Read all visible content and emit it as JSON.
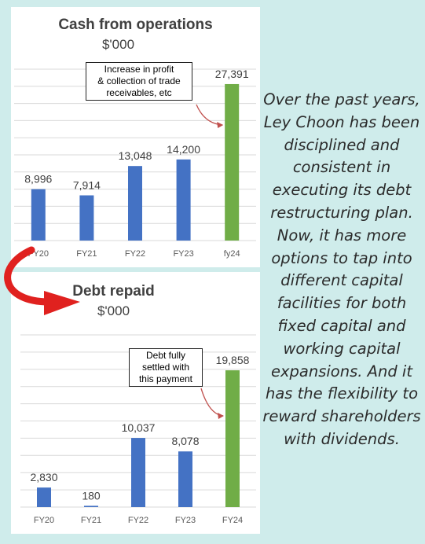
{
  "colors": {
    "bar": "#4472c4",
    "highlight": "#70ad47",
    "grid": "#d9d9d9",
    "annotation_arrow": "#c0504d",
    "big_arrow": "#e0211f",
    "background": "#cfeceb"
  },
  "chart_data": [
    {
      "type": "bar",
      "title": "Cash from operations",
      "subtitle": "$'000",
      "categories": [
        "FY20",
        "FY21",
        "FY22",
        "FY23",
        "fy24"
      ],
      "values": [
        8996,
        7914,
        13048,
        14200,
        27391
      ],
      "data_labels": [
        "8,996",
        "7,914",
        "13,048",
        "14,200",
        "27,391"
      ],
      "highlight_index": 4,
      "ylim": [
        0,
        30000
      ],
      "grid": true,
      "annotation": "Increase in profit & collection of trade receivables, etc",
      "annotation_lines": [
        "Increase in profit",
        "& collection of trade",
        "receivables, etc"
      ]
    },
    {
      "type": "bar",
      "title": "Debt repaid",
      "subtitle": "$'000",
      "categories": [
        "FY20",
        "FY21",
        "FY22",
        "FY23",
        "FY24"
      ],
      "values": [
        2830,
        180,
        10037,
        8078,
        19858
      ],
      "data_labels": [
        "2,830",
        "180",
        "10,037",
        "8,078",
        "19,858"
      ],
      "highlight_index": 4,
      "ylim": [
        0,
        25000
      ],
      "grid": true,
      "annotation": "Debt fully settled with this payment",
      "annotation_lines": [
        "Debt fully",
        "settled with",
        "this payment"
      ]
    }
  ],
  "paragraph": "Over the past years, Ley Choon has been disciplined and consistent in executing its debt restructuring plan. Now, it has more options to tap into different capital facilities for both fixed capital and working capital expansions. And it has the flexibility to reward shareholders with dividends."
}
